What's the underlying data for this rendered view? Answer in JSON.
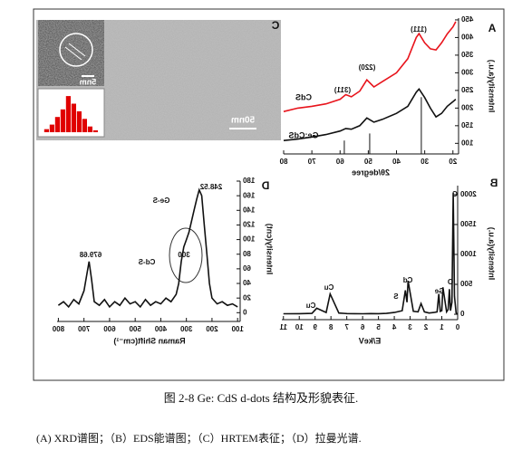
{
  "chart_data": [
    {
      "type": "line",
      "label": "A",
      "x_label": "2θ/degree",
      "y_label": "Intensity(a.u.)",
      "xlim": [
        18,
        80
      ],
      "ylim": [
        70,
        455
      ],
      "xticks": [
        20,
        30,
        40,
        50,
        60,
        70,
        80
      ],
      "yticks": [
        100,
        150,
        200,
        250,
        300,
        350,
        400,
        450
      ],
      "x": [
        80,
        75,
        70,
        65,
        60,
        58,
        56,
        53,
        50.5,
        48,
        45,
        40,
        36,
        33,
        32,
        30,
        28,
        26,
        24,
        22,
        20,
        19
      ],
      "series": [
        {
          "name": "CdS",
          "color": "#e8141c",
          "values": [
            190,
            200,
            205,
            212,
            225,
            238,
            232,
            248,
            280,
            260,
            275,
            300,
            340,
            400,
            411,
            385,
            368,
            365,
            385,
            410,
            430,
            445
          ]
        },
        {
          "name": "Ge:CdS",
          "color": "#111111",
          "values": [
            108,
            112,
            118,
            125,
            135,
            142,
            140,
            150,
            172,
            160,
            168,
            185,
            205,
            245,
            254,
            230,
            200,
            175,
            185,
            205,
            218,
            225
          ]
        }
      ],
      "reference_lines": {
        "x": [
          31.2,
          49.5,
          58.5
        ],
        "values": [
          231,
          128,
          108
        ]
      },
      "annotations": [
        "(111)",
        "(220)",
        "(311)"
      ]
    },
    {
      "type": "line",
      "label": "B",
      "x_label": "E/keV",
      "y_label": "Intensity(a.u.)",
      "xlim": [
        0,
        11.1
      ],
      "ylim": [
        -90,
        2150
      ],
      "xticks": [
        0,
        1,
        2,
        3,
        4,
        5,
        6,
        7,
        8,
        9,
        10,
        11
      ],
      "yticks": [
        0,
        500,
        1000,
        1500,
        2000
      ],
      "x": [
        0,
        0.1,
        0.2,
        0.28,
        0.36,
        0.45,
        0.52,
        0.6,
        0.7,
        0.93,
        1.0,
        1.1,
        1.19,
        1.3,
        1.5,
        1.8,
        2.1,
        2.31,
        2.5,
        2.8,
        3.13,
        3.2,
        3.3,
        3.5,
        4,
        4.5,
        5,
        5.5,
        6,
        6.5,
        7,
        7.5,
        8.05,
        8.3,
        8.9,
        9.2,
        10,
        11
      ],
      "color": "#111111",
      "values": [
        0,
        20,
        300,
        2030,
        200,
        60,
        420,
        80,
        40,
        450,
        60,
        50,
        340,
        40,
        30,
        20,
        40,
        180,
        40,
        50,
        560,
        200,
        400,
        60,
        30,
        15,
        10,
        12,
        8,
        10,
        12,
        20,
        340,
        30,
        100,
        15,
        10,
        8
      ],
      "annotations": [
        "C",
        "O",
        "Ge",
        "Cd",
        "S",
        "Cu",
        "Cu"
      ]
    },
    {
      "type": "line",
      "label": "D",
      "x_label": "Raman Shift(cm⁻¹)",
      "y_label": "Intensity(cnt)",
      "xlim": [
        90,
        805
      ],
      "ylim": [
        -12,
        180
      ],
      "xticks": [
        100,
        200,
        300,
        400,
        500,
        600,
        700,
        800
      ],
      "yticks": [
        0,
        20,
        40,
        60,
        80,
        100,
        120,
        140,
        160,
        180
      ],
      "x": [
        800,
        780,
        760,
        740,
        720,
        700,
        690,
        680,
        670,
        660,
        640,
        620,
        600,
        580,
        560,
        540,
        520,
        500,
        480,
        460,
        440,
        420,
        400,
        380,
        360,
        340,
        330,
        320,
        310,
        300,
        290,
        280,
        270,
        260,
        250,
        240,
        230,
        220,
        210,
        200,
        180,
        160,
        140,
        120,
        100
      ],
      "color": "#111111",
      "values": [
        10,
        15,
        8,
        18,
        12,
        30,
        50,
        70,
        45,
        15,
        10,
        18,
        8,
        15,
        10,
        20,
        12,
        15,
        8,
        18,
        10,
        15,
        12,
        20,
        15,
        25,
        40,
        70,
        90,
        100,
        110,
        125,
        140,
        155,
        168,
        160,
        120,
        80,
        40,
        20,
        12,
        15,
        10,
        12,
        8
      ],
      "annotations": [
        "248.52",
        "Ge-S",
        "679.68",
        "Cd-S",
        "300"
      ]
    }
  ],
  "panel_c": {
    "label": "C",
    "scale_bars": [
      "5nm",
      "50nm"
    ],
    "histogram": {
      "color": "#e00000",
      "ylim": [
        0,
        100
      ],
      "values": [
        5,
        15,
        35,
        55,
        75,
        95,
        60,
        40,
        20,
        8
      ]
    }
  },
  "caption": {
    "title": "图 2-8 Ge: CdS d-dots 结构及形貌表征.",
    "subtitle": "(A) XRD谱图；（B）EDS能谱图；（C）HRTEM表征；（D）拉曼光谱."
  }
}
